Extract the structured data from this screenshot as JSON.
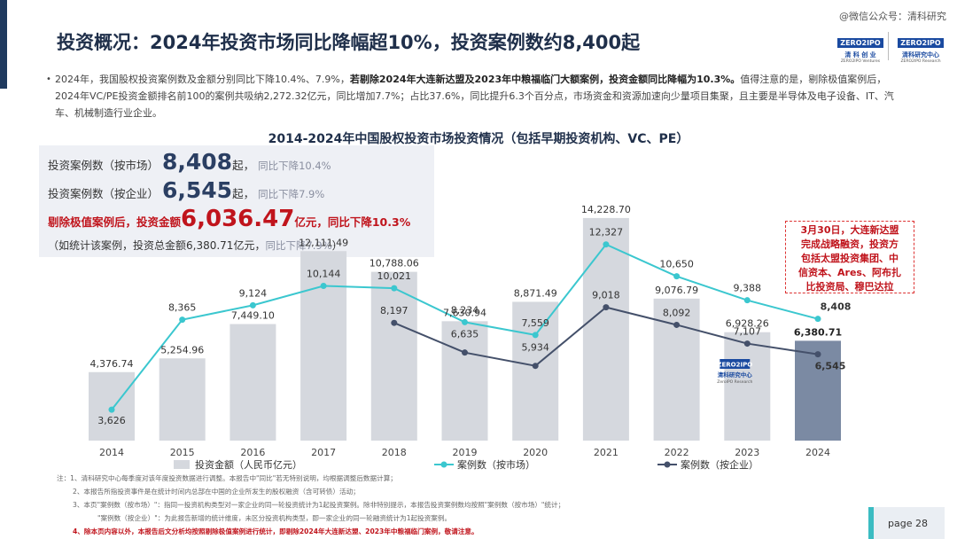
{
  "header": {
    "title": "投资概况：2024年投资市场同比降幅超10%，投资案例数约8,400起",
    "watermark": "@微信公众号：清科研究",
    "logo1": {
      "top": "ZERO2IPO",
      "cn": "清 科 创 业",
      "en": "ZERO2IPO Ventures"
    },
    "logo2": {
      "top": "ZERO2IPO",
      "cn": "清科研究中心",
      "en": "ZERO2IPO Research"
    }
  },
  "summary": {
    "bullet": "•",
    "part1": "2024年，我国股权投资案例数及金额分别同比下降10.4%、7.9%，",
    "part2_bold": "若剔除2024年大连新达盟及2023年中粮福临门大额案例，投资金额同比降幅为10.3%。",
    "part3": "值得注意的是，剔除极值案例后，2024年VC/PE投资金额排名前100的案例共吸纳2,272.32亿元，同比增加7.7%；占比37.6%，同比提升6.3个百分点，市场资金和资源加速向少量项目集聚，且主要是半导体及电子设备、IT、汽车、机械制造行业企业。"
  },
  "stats": {
    "row1": {
      "label": "投资案例数（按市场）",
      "value": "8,408",
      "unit": "起，",
      "change": "同比下降10.4%"
    },
    "row2": {
      "label": "投资案例数（按企业）",
      "value": "6,545",
      "unit": "起，",
      "change": "同比下降7.9%"
    },
    "row3": {
      "label": "剔除极值案例后，投资金额",
      "value": "6,036.47",
      "unit": "亿元，",
      "change_a": "同比",
      "change_b": "下降10.3%"
    },
    "row4": {
      "label": "（如统计该案例，投资总金额6,380.71亿元，",
      "change": "同比下降7.9%",
      "tail": "）"
    }
  },
  "callout": {
    "lines": [
      "3月30日，大连新达盟",
      "完成战略融资，投资方",
      "包括太盟投资集团、中",
      "信资本、Ares、阿布扎",
      "比投资局、穆巴达拉"
    ]
  },
  "chart_data": {
    "type": "bar",
    "title": "2014-2024年中国股权投资市场投资情况（包括早期投资机构、VC、PE）",
    "categories": [
      "2014",
      "2015",
      "2016",
      "2017",
      "2018",
      "2019",
      "2020",
      "2021",
      "2022",
      "2023",
      "2024"
    ],
    "series": [
      {
        "name": "投资金额（人民币亿元）",
        "type": "bar",
        "color": "#d5d8de",
        "last_color": "#7b8aa3",
        "values": [
          4376.74,
          5254.96,
          7449.1,
          12111.49,
          10788.06,
          7630.94,
          8871.49,
          14228.7,
          9076.79,
          6928.26,
          6380.71
        ],
        "labels": [
          "4,376.74",
          "5,254.96",
          "7,449.10",
          "12,111.49",
          "10,788.06",
          "7,630.94",
          "8,871.49",
          "14,228.70",
          "9,076.79",
          "6,928.26",
          "6,380.71"
        ]
      },
      {
        "name": "案例数（按市场）",
        "type": "line",
        "color": "#3bc7cf",
        "values": [
          3626,
          8365,
          9124,
          10144,
          10021,
          8234,
          7559,
          12327,
          10650,
          9388,
          8408
        ],
        "labels": [
          "3,626",
          "8,365",
          "9,124",
          "10,144",
          "10,021",
          "8,234",
          "7,559",
          "12,327",
          "10,650",
          "9,388",
          "8,408"
        ]
      },
      {
        "name": "案例数（按企业）",
        "type": "line",
        "color": "#44506a",
        "values": [
          null,
          null,
          null,
          null,
          8197,
          6635,
          5934,
          9018,
          8092,
          7107,
          6545
        ],
        "labels": [
          null,
          null,
          null,
          null,
          "8,197",
          "6,635",
          "5,934",
          "9,018",
          "8,092",
          "7,107",
          "6,545"
        ]
      }
    ],
    "bar_ylim": [
      0,
      17000
    ],
    "line_ylim": [
      2000,
      16000
    ],
    "legend_position": "bottom",
    "watermark_logo": {
      "top": "ZERO2IPO",
      "cn": "清科研究中心",
      "en": "ZeroIPO Research"
    }
  },
  "notes": {
    "line1": "注：1、清科研究中心每季度对该年度投资数据进行调整。本报告中\"同比\"若无特别说明，均根据调整后数据计算；",
    "line2": "2、本报告所指投资事件是在统计时间内总部在中国的企业所发生的股权融资（含可转债）活动；",
    "line3": "3、本页\"案例数（按市场）\"：指同一投资机构类型对一家企业的同一轮投资统计为1起投资案例。除非特别提示，本报告投资案例数均按照\"案例数（按市场）\"统计；",
    "line4": "\"案例数（按企业）\"：为此报告新增的统计维度，未区分投资机构类型，即一家企业的同一轮融资统计为1起投资案例。",
    "line5_num": "4、",
    "line5": "除本页内容以外，本报告后文分析均按照剔除极值案例进行统计，即剔除2024年大连新达盟、2023年中粮福临门案例，敬请注意。"
  },
  "footer": {
    "page": "page  28"
  }
}
